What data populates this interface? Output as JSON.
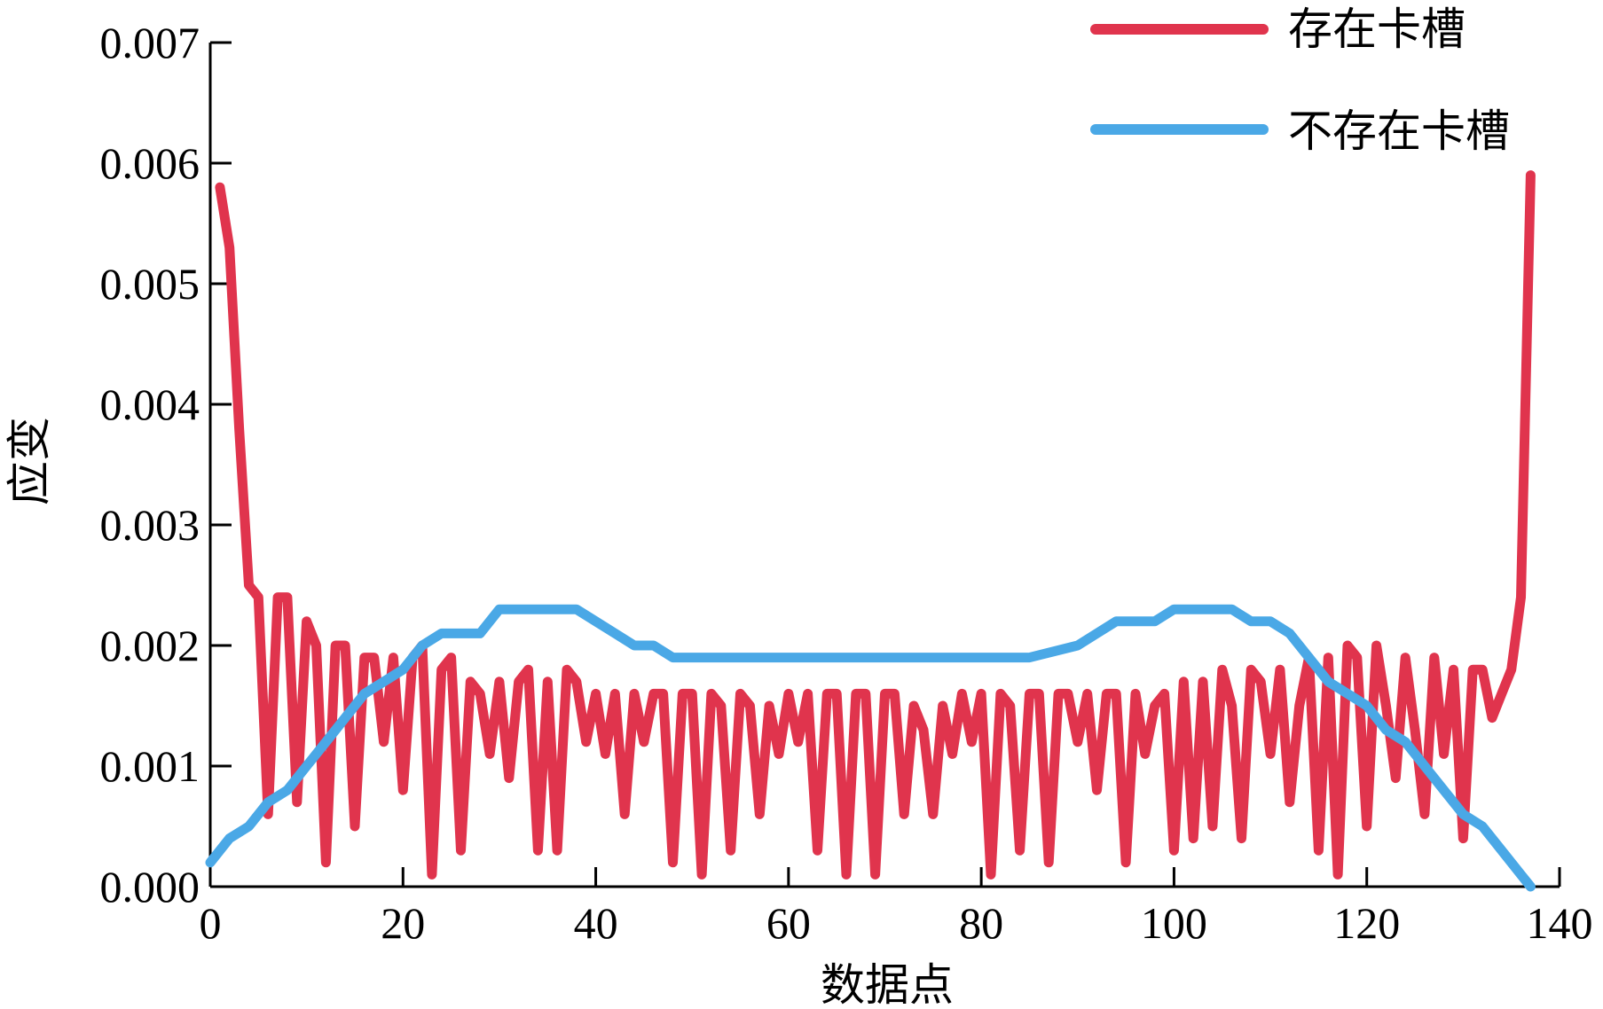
{
  "chart_data": {
    "type": "line",
    "title": "",
    "xlabel": "数据点",
    "ylabel": "应变",
    "xlim": [
      0,
      140
    ],
    "ylim": [
      0,
      0.007
    ],
    "xticks": [
      0,
      20,
      40,
      60,
      80,
      100,
      120,
      140
    ],
    "yticks": [
      0.0,
      0.001,
      0.002,
      0.003,
      0.004,
      0.005,
      0.006,
      0.007
    ],
    "xtick_labels": [
      "0",
      "20",
      "40",
      "60",
      "80",
      "100",
      "120",
      "140"
    ],
    "ytick_labels": [
      "0.000",
      "0.001",
      "0.002",
      "0.003",
      "0.004",
      "0.005",
      "0.006",
      "0.007"
    ],
    "grid": false,
    "legend_position": "top-right",
    "series": [
      {
        "name": "存在卡槽",
        "color": "#e0344d",
        "x": [
          1,
          2,
          3,
          4,
          5,
          6,
          7,
          8,
          9,
          10,
          11,
          12,
          13,
          14,
          15,
          16,
          17,
          18,
          19,
          20,
          21,
          22,
          23,
          24,
          25,
          26,
          27,
          28,
          29,
          30,
          31,
          32,
          33,
          34,
          35,
          36,
          37,
          38,
          39,
          40,
          41,
          42,
          43,
          44,
          45,
          46,
          47,
          48,
          49,
          50,
          51,
          52,
          53,
          54,
          55,
          56,
          57,
          58,
          59,
          60,
          61,
          62,
          63,
          64,
          65,
          66,
          67,
          68,
          69,
          70,
          71,
          72,
          73,
          74,
          75,
          76,
          77,
          78,
          79,
          80,
          81,
          82,
          83,
          84,
          85,
          86,
          87,
          88,
          89,
          90,
          91,
          92,
          93,
          94,
          95,
          96,
          97,
          98,
          99,
          100,
          101,
          102,
          103,
          104,
          105,
          106,
          107,
          108,
          109,
          110,
          111,
          112,
          113,
          114,
          115,
          116,
          117,
          118,
          119,
          120,
          121,
          122,
          123,
          124,
          125,
          126,
          127,
          128,
          129,
          130,
          131,
          132,
          133,
          134,
          135,
          136,
          137
        ],
        "y": [
          0.0058,
          0.0053,
          0.0038,
          0.0025,
          0.0024,
          0.0006,
          0.0024,
          0.0024,
          0.0007,
          0.0022,
          0.002,
          0.0002,
          0.002,
          0.002,
          0.0005,
          0.0019,
          0.0019,
          0.0012,
          0.0019,
          0.0008,
          0.0019,
          0.002,
          0.0001,
          0.0018,
          0.0019,
          0.0003,
          0.0017,
          0.0016,
          0.0011,
          0.0017,
          0.0009,
          0.0017,
          0.0018,
          0.0003,
          0.0017,
          0.0003,
          0.0018,
          0.0017,
          0.0012,
          0.0016,
          0.0011,
          0.0016,
          0.0006,
          0.0016,
          0.0012,
          0.0016,
          0.0016,
          0.0002,
          0.0016,
          0.0016,
          0.0001,
          0.0016,
          0.0015,
          0.0003,
          0.0016,
          0.0015,
          0.0006,
          0.0015,
          0.0011,
          0.0016,
          0.0012,
          0.0016,
          0.0003,
          0.0016,
          0.0016,
          0.0001,
          0.0016,
          0.0016,
          0.0001,
          0.0016,
          0.0016,
          0.0006,
          0.0015,
          0.0013,
          0.0006,
          0.0015,
          0.0011,
          0.0016,
          0.0012,
          0.0016,
          0.0001,
          0.0016,
          0.0015,
          0.0003,
          0.0016,
          0.0016,
          0.0002,
          0.0016,
          0.0016,
          0.0012,
          0.0016,
          0.0008,
          0.0016,
          0.0016,
          0.0002,
          0.0016,
          0.0011,
          0.0015,
          0.0016,
          0.0003,
          0.0017,
          0.0004,
          0.0017,
          0.0005,
          0.0018,
          0.0015,
          0.0004,
          0.0018,
          0.0017,
          0.0011,
          0.0018,
          0.0007,
          0.0015,
          0.0019,
          0.0003,
          0.0019,
          0.0001,
          0.002,
          0.0019,
          0.0005,
          0.002,
          0.0015,
          0.0009,
          0.0019,
          0.0013,
          0.0006,
          0.0019,
          0.0011,
          0.0018,
          0.0004,
          0.0018,
          0.0018,
          0.0014,
          0.0016,
          0.0018,
          0.0024,
          0.0059
        ]
      },
      {
        "name": "不存在卡槽",
        "color": "#4aa8e6",
        "x": [
          0,
          2,
          4,
          6,
          8,
          10,
          12,
          14,
          16,
          18,
          20,
          22,
          24,
          26,
          28,
          30,
          32,
          34,
          36,
          38,
          40,
          42,
          44,
          46,
          48,
          50,
          55,
          60,
          65,
          70,
          75,
          80,
          85,
          90,
          92,
          94,
          96,
          98,
          100,
          102,
          104,
          106,
          108,
          110,
          112,
          114,
          116,
          118,
          120,
          122,
          124,
          126,
          128,
          130,
          132,
          134,
          136,
          137
        ],
        "y": [
          0.0002,
          0.0004,
          0.0005,
          0.0007,
          0.0008,
          0.001,
          0.0012,
          0.0014,
          0.0016,
          0.0017,
          0.0018,
          0.002,
          0.0021,
          0.0021,
          0.0021,
          0.0023,
          0.0023,
          0.0023,
          0.0023,
          0.0023,
          0.0022,
          0.0021,
          0.002,
          0.002,
          0.0019,
          0.0019,
          0.0019,
          0.0019,
          0.0019,
          0.0019,
          0.0019,
          0.0019,
          0.0019,
          0.002,
          0.0021,
          0.0022,
          0.0022,
          0.0022,
          0.0023,
          0.0023,
          0.0023,
          0.0023,
          0.0022,
          0.0022,
          0.0021,
          0.0019,
          0.0017,
          0.0016,
          0.0015,
          0.0013,
          0.0012,
          0.001,
          0.0008,
          0.0006,
          0.0005,
          0.0003,
          0.0001,
          0.0
        ]
      }
    ]
  }
}
